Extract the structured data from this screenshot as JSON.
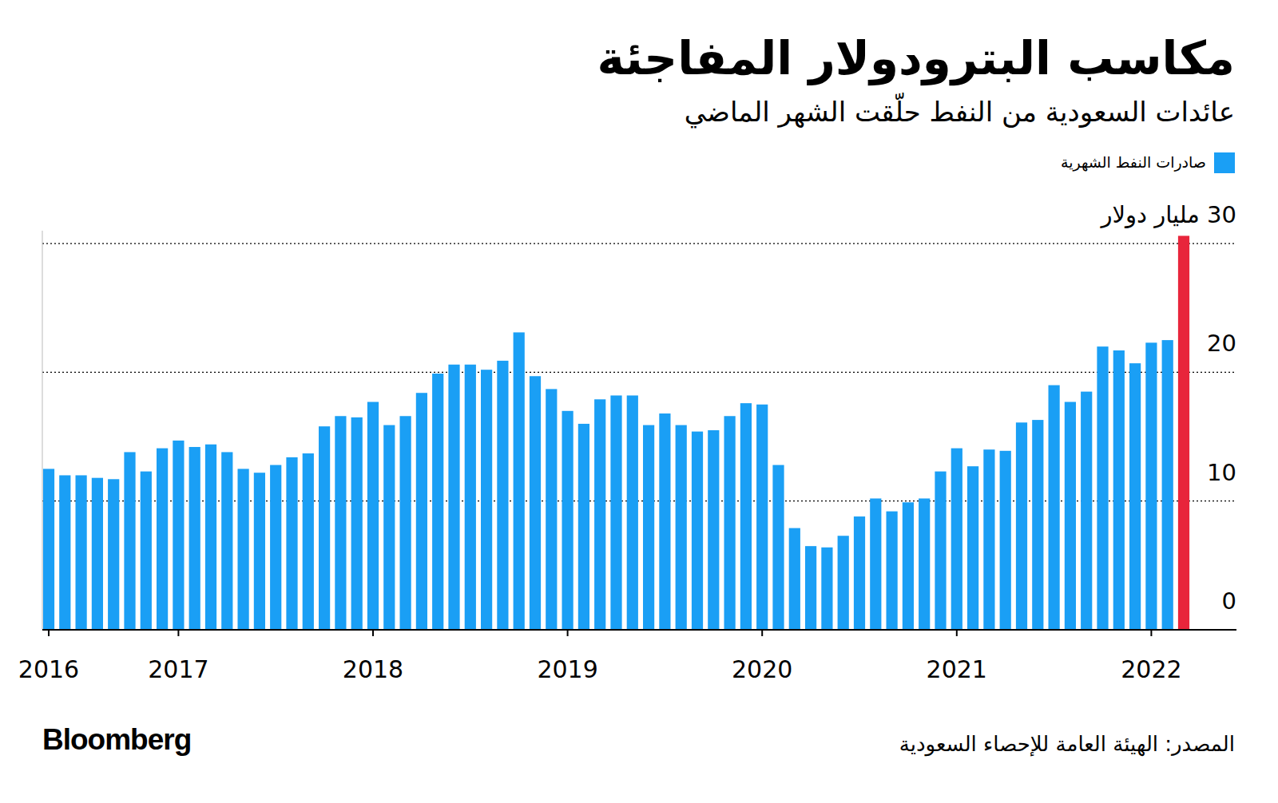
{
  "chart_data": {
    "type": "bar",
    "title": "مكاسب البترودولار المفاجئة",
    "subtitle": "عائدات السعودية من النفط حلّقت الشهر الماضي",
    "source": "المصدر: الهيئة العامة للإحصاء السعودية",
    "logo": "Bloomberg",
    "categories": [
      "2016",
      null,
      null,
      null,
      null,
      null,
      null,
      null,
      "2017",
      null,
      null,
      null,
      null,
      null,
      null,
      null,
      null,
      null,
      null,
      null,
      "2018",
      null,
      null,
      null,
      null,
      null,
      null,
      null,
      null,
      null,
      null,
      null,
      "2019",
      null,
      null,
      null,
      null,
      null,
      null,
      null,
      null,
      null,
      null,
      null,
      "2020",
      null,
      null,
      null,
      null,
      null,
      null,
      null,
      null,
      null,
      null,
      null,
      "2021",
      null,
      null,
      null,
      null,
      null,
      null,
      null,
      null,
      null,
      null,
      null,
      "2022",
      null,
      null
    ],
    "series": [
      {
        "name": "صادرات النفط الشهرية",
        "color": "#1a9ff5",
        "values": [
          12.5,
          12.0,
          12.0,
          11.8,
          11.7,
          13.8,
          12.3,
          14.1,
          14.7,
          14.2,
          14.4,
          13.8,
          12.5,
          12.2,
          12.8,
          13.4,
          13.7,
          15.8,
          16.6,
          16.5,
          17.7,
          15.9,
          16.6,
          18.4,
          19.9,
          20.6,
          20.6,
          20.2,
          20.9,
          23.1,
          19.7,
          18.7,
          17.0,
          16.0,
          17.9,
          18.2,
          18.2,
          15.9,
          16.8,
          15.9,
          15.4,
          15.5,
          16.6,
          17.6,
          17.5,
          12.8,
          7.9,
          6.5,
          6.4,
          7.3,
          8.8,
          10.2,
          9.2,
          9.9,
          10.2,
          12.3,
          14.1,
          12.7,
          14.0,
          13.9,
          16.1,
          16.3,
          19.0,
          17.7,
          18.5,
          22.0,
          21.7,
          20.7,
          22.3,
          22.5,
          30.6
        ],
        "colors": [
          "#1a9ff5",
          "#1a9ff5",
          "#1a9ff5",
          "#1a9ff5",
          "#1a9ff5",
          "#1a9ff5",
          "#1a9ff5",
          "#1a9ff5",
          "#1a9ff5",
          "#1a9ff5",
          "#1a9ff5",
          "#1a9ff5",
          "#1a9ff5",
          "#1a9ff5",
          "#1a9ff5",
          "#1a9ff5",
          "#1a9ff5",
          "#1a9ff5",
          "#1a9ff5",
          "#1a9ff5",
          "#1a9ff5",
          "#1a9ff5",
          "#1a9ff5",
          "#1a9ff5",
          "#1a9ff5",
          "#1a9ff5",
          "#1a9ff5",
          "#1a9ff5",
          "#1a9ff5",
          "#1a9ff5",
          "#1a9ff5",
          "#1a9ff5",
          "#1a9ff5",
          "#1a9ff5",
          "#1a9ff5",
          "#1a9ff5",
          "#1a9ff5",
          "#1a9ff5",
          "#1a9ff5",
          "#1a9ff5",
          "#1a9ff5",
          "#1a9ff5",
          "#1a9ff5",
          "#1a9ff5",
          "#1a9ff5",
          "#1a9ff5",
          "#1a9ff5",
          "#1a9ff5",
          "#1a9ff5",
          "#1a9ff5",
          "#1a9ff5",
          "#1a9ff5",
          "#1a9ff5",
          "#1a9ff5",
          "#1a9ff5",
          "#1a9ff5",
          "#1a9ff5",
          "#1a9ff5",
          "#1a9ff5",
          "#1a9ff5",
          "#1a9ff5",
          "#1a9ff5",
          "#1a9ff5",
          "#1a9ff5",
          "#1a9ff5",
          "#1a9ff5",
          "#1a9ff5",
          "#1a9ff5",
          "#1a9ff5",
          "#1a9ff5",
          "#e8253b"
        ]
      }
    ],
    "ylim": [
      0,
      31
    ],
    "yticks": [
      0,
      10,
      20,
      {
        "value": 30,
        "label": "30 مليار دولار"
      }
    ],
    "grid": true,
    "legend": "top-right"
  }
}
